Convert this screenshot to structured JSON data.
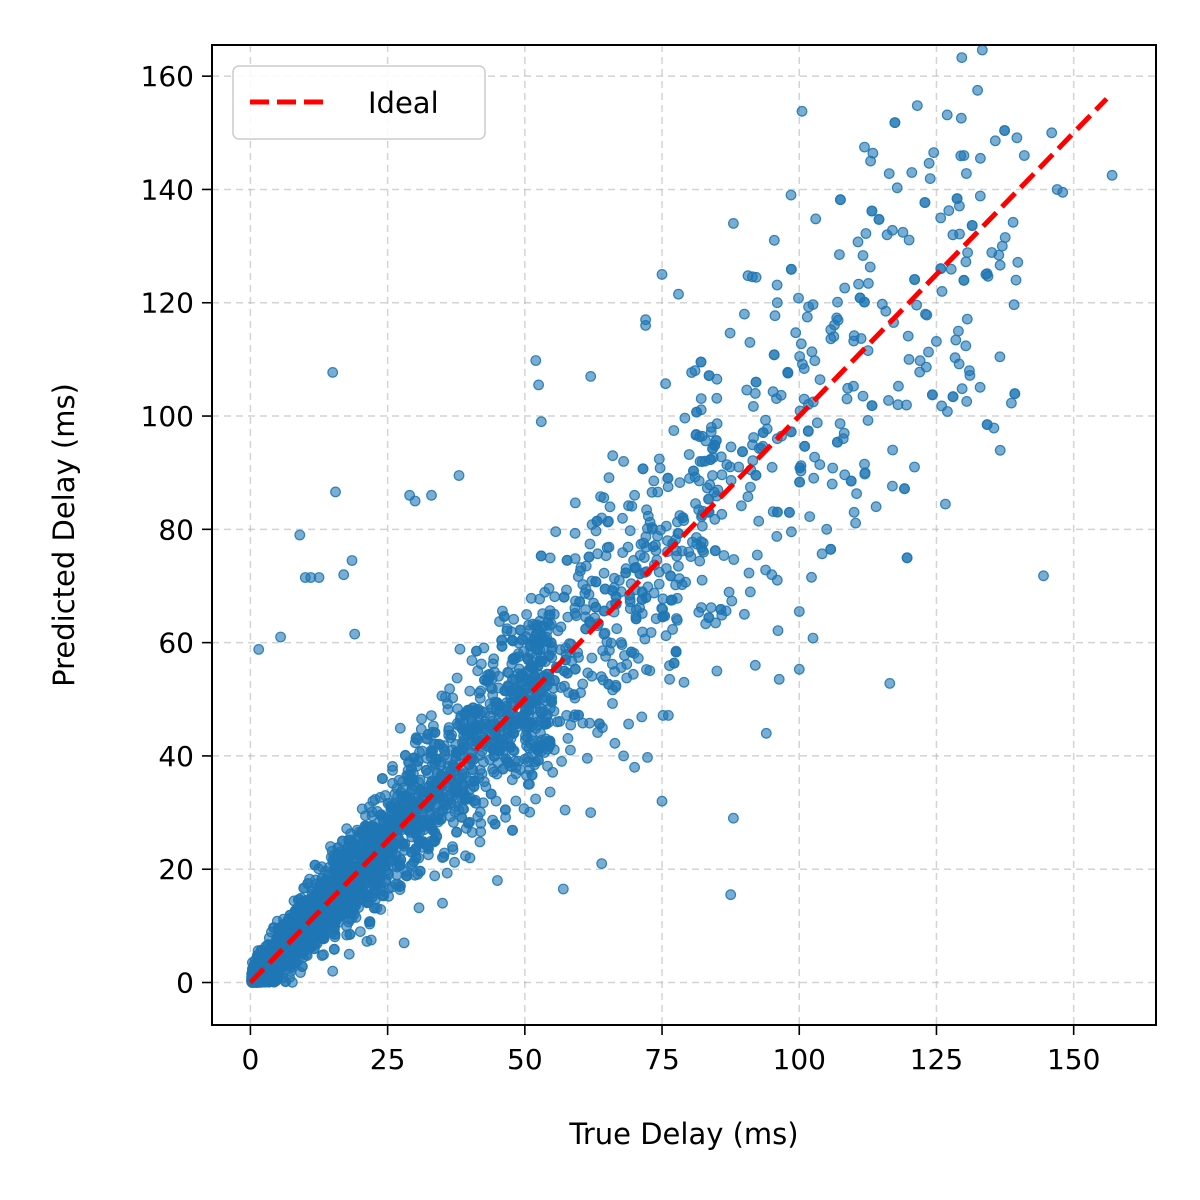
{
  "chart_data": {
    "type": "scatter",
    "title": "",
    "xlabel": "True Delay (ms)",
    "ylabel": "Predicted Delay (ms)",
    "xlim": [
      -7,
      165
    ],
    "ylim": [
      -7.5,
      165.5
    ],
    "xticks": [
      0,
      25,
      50,
      75,
      100,
      125,
      150
    ],
    "yticks": [
      0,
      20,
      40,
      60,
      80,
      100,
      120,
      140,
      160
    ],
    "xtick_labels": [
      "0",
      "25",
      "50",
      "75",
      "100",
      "125",
      "150"
    ],
    "ytick_labels": [
      "0",
      "20",
      "40",
      "60",
      "80",
      "100",
      "120",
      "140",
      "160"
    ],
    "grid": true,
    "legend": {
      "placement": "top-left",
      "entries": [
        "Ideal"
      ]
    },
    "series": [
      {
        "kind": "points",
        "color": "#1f77b4",
        "outliers": [
          [
            1.5,
            58.8
          ],
          [
            5.5,
            61
          ],
          [
            9,
            79
          ],
          [
            10,
            71.5
          ],
          [
            11,
            71.5
          ],
          [
            12.5,
            71.5
          ],
          [
            15,
            107.7
          ],
          [
            15.5,
            86.6
          ],
          [
            17,
            72
          ],
          [
            18.5,
            74.5
          ],
          [
            19,
            61.5
          ],
          [
            29,
            86
          ],
          [
            30,
            85
          ],
          [
            33,
            86
          ],
          [
            38,
            89.5
          ],
          [
            52,
            109.8
          ],
          [
            52.5,
            105.5
          ],
          [
            53,
            99
          ],
          [
            62,
            107
          ],
          [
            66,
            93
          ],
          [
            68,
            92
          ],
          [
            72,
            117
          ],
          [
            72,
            116
          ],
          [
            75,
            125
          ],
          [
            78,
            121.5
          ],
          [
            81,
            108
          ],
          [
            85,
            106.5
          ],
          [
            87.5,
            15.5
          ],
          [
            88,
            134
          ],
          [
            90,
            118
          ],
          [
            91,
            113
          ],
          [
            96,
            120
          ],
          [
            98.5,
            139
          ],
          [
            100,
            65.5
          ],
          [
            100,
            55.3
          ],
          [
            100.5,
            153.8
          ],
          [
            102.5,
            60.8
          ],
          [
            103,
            134.8
          ],
          [
            116.5,
            52.8
          ],
          [
            113,
            145
          ],
          [
            116,
            132
          ],
          [
            120.5,
            143
          ],
          [
            121.5,
            154.8
          ],
          [
            124.5,
            146.5
          ],
          [
            128,
            132
          ],
          [
            130,
            146
          ],
          [
            132.5,
            157.5
          ],
          [
            133,
            145.5
          ],
          [
            139.5,
            124
          ],
          [
            141,
            146
          ],
          [
            144.5,
            71.8
          ],
          [
            146,
            150
          ],
          [
            147,
            140
          ],
          [
            148,
            139.5
          ],
          [
            157,
            142.5
          ],
          [
            121,
            91
          ],
          [
            127,
            100.8
          ],
          [
            117,
            94
          ],
          [
            110,
            83
          ],
          [
            94,
            44
          ],
          [
            92,
            56
          ],
          [
            79,
            53
          ],
          [
            75,
            32
          ],
          [
            68,
            40
          ],
          [
            64,
            21
          ],
          [
            57,
            16.5
          ],
          [
            45,
            18
          ],
          [
            40,
            22
          ],
          [
            35,
            14
          ],
          [
            28,
            7
          ],
          [
            22,
            7.5
          ],
          [
            18,
            5
          ],
          [
            15,
            2
          ],
          [
            62,
            30
          ],
          [
            70,
            38
          ],
          [
            85,
            55
          ],
          [
            90,
            65
          ],
          [
            88,
            29
          ],
          [
            95,
            72
          ],
          [
            105,
            80
          ],
          [
            108,
            96
          ],
          [
            112,
            90
          ],
          [
            118,
            102
          ],
          [
            120,
            110
          ],
          [
            123,
            118
          ],
          [
            126,
            122
          ],
          [
            129,
            115
          ],
          [
            134,
            125
          ],
          [
            137,
            130
          ],
          [
            131,
            108
          ],
          [
            114,
            84
          ],
          [
            106,
            88
          ],
          [
            96,
            96
          ],
          [
            92,
            104
          ],
          [
            84,
            98
          ],
          [
            80,
            89
          ],
          [
            76,
            78
          ],
          [
            70,
            86
          ],
          [
            64,
            82
          ]
        ]
      },
      {
        "kind": "line",
        "name": "Ideal",
        "color": "#ff0000",
        "x": [
          0,
          156
        ],
        "y": [
          0,
          156
        ]
      }
    ]
  }
}
